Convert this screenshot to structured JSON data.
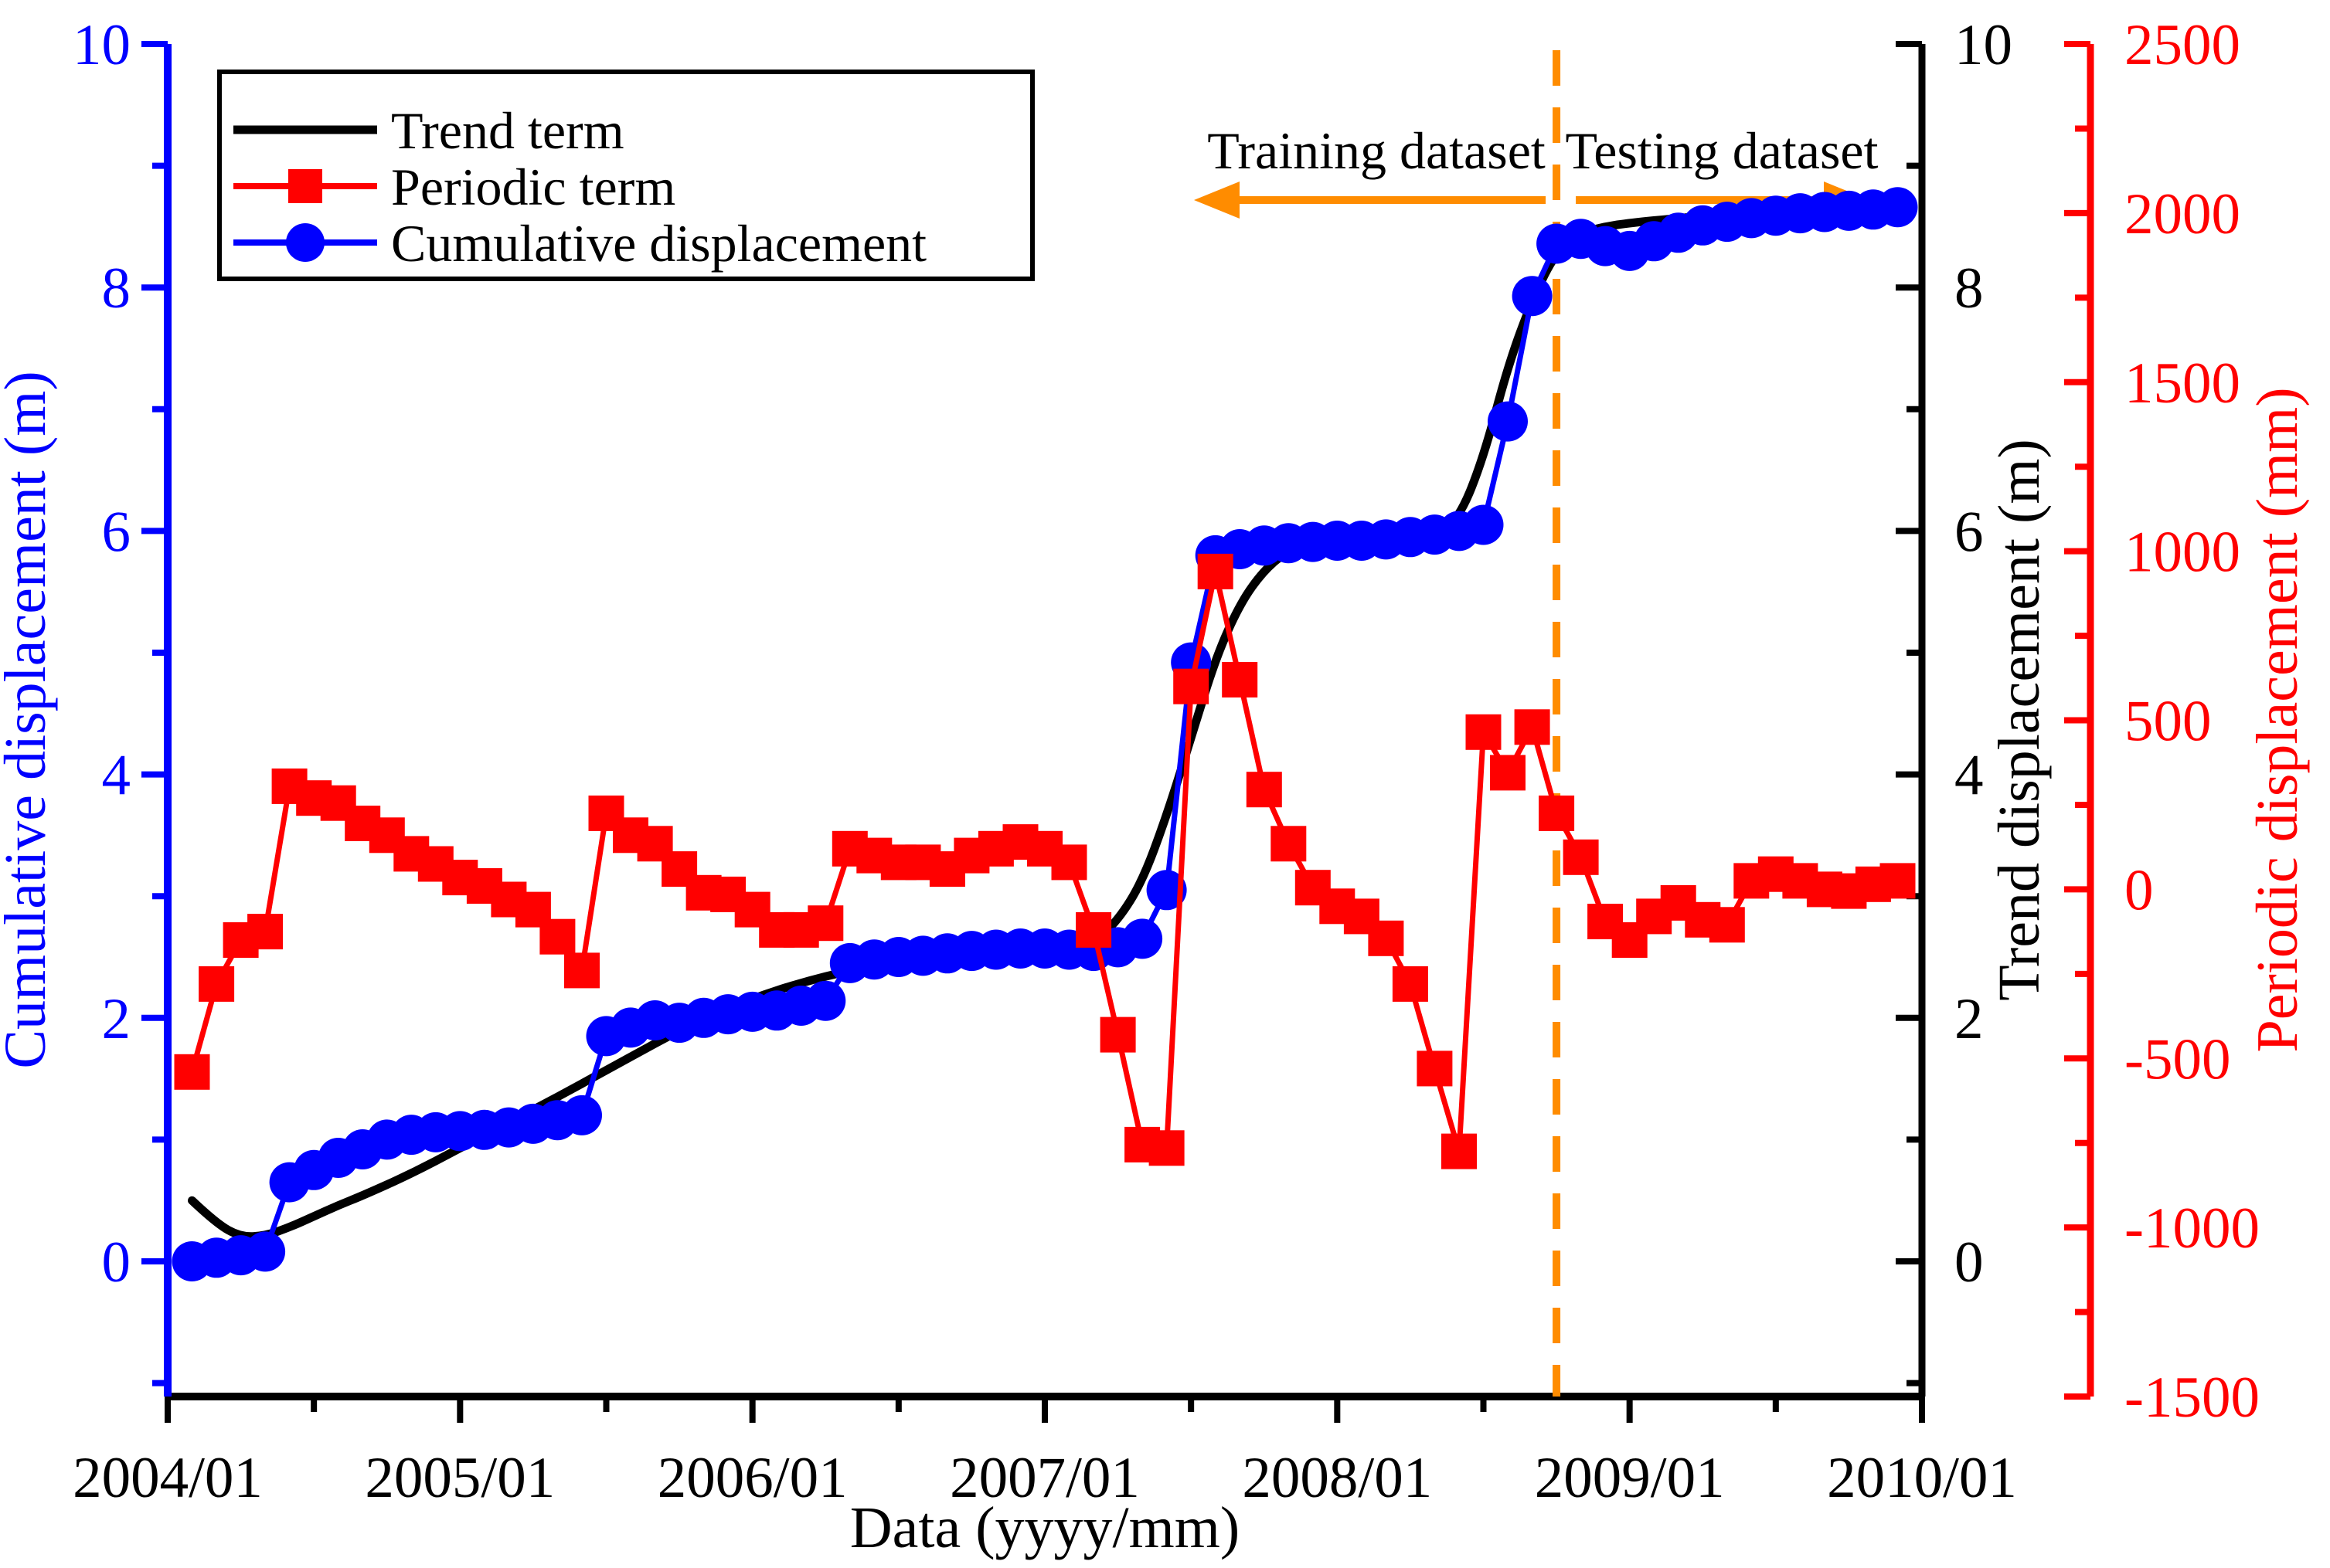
{
  "page": {
    "background": "#ffffff"
  },
  "legend": {
    "items": [
      {
        "label": "Trend term",
        "color": "#000000",
        "marker": "line"
      },
      {
        "label": "Periodic term",
        "color": "#FF0000",
        "marker": "filled-square"
      },
      {
        "label": "Cumulative displacement",
        "color": "#0000FF",
        "marker": "filled-circle"
      }
    ]
  },
  "annotations": {
    "training_label": "Training dataset",
    "testing_label": "Testing dataset",
    "split_month": "2008/10",
    "split_line_color": "#FF8C00",
    "arrow_color": "#FF8C00"
  },
  "chart_data": {
    "type": "line",
    "title": "",
    "xlabel": "Data (yyyy/mm)",
    "grid": false,
    "x_tick_labels": [
      "2004/01",
      "2005/01",
      "2006/01",
      "2007/01",
      "2008/01",
      "2009/01",
      "2010/01"
    ],
    "axes": {
      "cumulative": {
        "label": "Cumulative displacement (m)",
        "color": "#0000FF",
        "side": "left",
        "ticks": [
          "0",
          "2",
          "4",
          "6",
          "8",
          "10"
        ],
        "tick_values": [
          0,
          2,
          4,
          6,
          8,
          10
        ],
        "min": -1.11,
        "max": 10
      },
      "trend": {
        "label": "Trend displacement (m)",
        "color": "#000000",
        "side": "right",
        "ticks": [
          "0",
          "2",
          "4",
          "6",
          "8",
          "10"
        ],
        "tick_values": [
          0,
          2,
          4,
          6,
          8,
          10
        ],
        "min": -1.11,
        "max": 10
      },
      "periodic": {
        "label": "Periodic displacement (mm)",
        "color": "#FF0000",
        "side": "far-right",
        "ticks": [
          "2500",
          "2000",
          "1500",
          "1000",
          "500",
          "0",
          "-500",
          "-1000",
          "-1500"
        ],
        "tick_values": [
          2500,
          2000,
          1500,
          1000,
          500,
          0,
          -500,
          -1000,
          -1500
        ],
        "min": -1500,
        "max": 2500
      }
    },
    "months": [
      "2004/02",
      "2004/03",
      "2004/04",
      "2004/05",
      "2004/06",
      "2004/07",
      "2004/08",
      "2004/09",
      "2004/10",
      "2004/11",
      "2004/12",
      "2005/01",
      "2005/02",
      "2005/03",
      "2005/04",
      "2005/05",
      "2005/06",
      "2005/07",
      "2005/08",
      "2005/09",
      "2005/10",
      "2005/11",
      "2005/12",
      "2006/01",
      "2006/02",
      "2006/03",
      "2006/04",
      "2006/05",
      "2006/06",
      "2006/07",
      "2006/08",
      "2006/09",
      "2006/10",
      "2006/11",
      "2006/12",
      "2007/01",
      "2007/02",
      "2007/03",
      "2007/04",
      "2007/05",
      "2007/06",
      "2007/07",
      "2007/08",
      "2007/09",
      "2007/10",
      "2007/11",
      "2007/12",
      "2008/01",
      "2008/02",
      "2008/03",
      "2008/04",
      "2008/05",
      "2008/06",
      "2008/07",
      "2008/08",
      "2008/09",
      "2008/10",
      "2008/11",
      "2008/12",
      "2009/01",
      "2009/02",
      "2009/03",
      "2009/04",
      "2009/05",
      "2009/06",
      "2009/07",
      "2009/08",
      "2009/09",
      "2009/10",
      "2009/11",
      "2009/12"
    ],
    "series": [
      {
        "name": "Trend term",
        "axis": "trend",
        "color": "#000000",
        "style": "smooth-line",
        "points_month_value": [
          [
            1,
            0.5
          ],
          [
            2,
            0.31
          ],
          [
            3,
            0.2
          ],
          [
            4,
            0.21
          ],
          [
            5,
            0.28
          ],
          [
            6,
            0.37
          ],
          [
            7,
            0.46
          ],
          [
            8,
            0.54
          ],
          [
            10,
            0.72
          ],
          [
            12,
            0.93
          ],
          [
            14,
            1.14
          ],
          [
            16,
            1.35
          ],
          [
            18,
            1.57
          ],
          [
            20,
            1.79
          ],
          [
            22,
            2.0
          ],
          [
            24,
            2.16
          ],
          [
            26,
            2.29
          ],
          [
            28,
            2.39
          ],
          [
            30,
            2.46
          ],
          [
            32,
            2.5
          ],
          [
            34,
            2.52
          ],
          [
            36,
            2.5
          ],
          [
            37,
            2.52
          ],
          [
            38,
            2.62
          ],
          [
            39,
            2.8
          ],
          [
            40,
            3.12
          ],
          [
            41,
            3.66
          ],
          [
            42,
            4.3
          ],
          [
            43,
            4.95
          ],
          [
            44,
            5.4
          ],
          [
            45,
            5.68
          ],
          [
            46,
            5.84
          ],
          [
            47,
            5.92
          ],
          [
            48,
            5.95
          ],
          [
            49,
            5.96
          ],
          [
            50,
            5.95
          ],
          [
            51,
            5.94
          ],
          [
            52,
            5.96
          ],
          [
            53,
            6.1
          ],
          [
            54,
            6.6
          ],
          [
            55,
            7.35
          ],
          [
            56,
            7.9
          ],
          [
            57,
            8.3
          ],
          [
            58,
            8.45
          ],
          [
            59,
            8.5
          ],
          [
            60,
            8.53
          ],
          [
            62,
            8.57
          ],
          [
            64,
            8.6
          ],
          [
            66,
            8.62
          ],
          [
            68,
            8.64
          ],
          [
            70,
            8.65
          ],
          [
            71.5,
            8.66
          ]
        ]
      },
      {
        "name": "Periodic term",
        "axis": "periodic",
        "color": "#FF0000",
        "style": "line+filled-square",
        "values": [
          -540,
          -280,
          -150,
          -125,
          305,
          270,
          255,
          195,
          160,
          105,
          75,
          35,
          10,
          -30,
          -60,
          -140,
          -240,
          225,
          160,
          135,
          60,
          -10,
          -15,
          -60,
          -120,
          -120,
          -100,
          120,
          100,
          80,
          80,
          60,
          100,
          120,
          140,
          120,
          80,
          -120,
          -430,
          -755,
          -765,
          600,
          940,
          620,
          295,
          135,
          5,
          -50,
          -80,
          -145,
          -280,
          -530,
          -775,
          465,
          345,
          480,
          225,
          95,
          -95,
          -150,
          -80,
          -40,
          -90,
          -105,
          25,
          45,
          25,
          0,
          -5,
          15,
          25
        ]
      },
      {
        "name": "Cumulative displacement",
        "axis": "cumulative",
        "color": "#0000FF",
        "style": "line+filled-circle",
        "values": [
          0.0,
          0.03,
          0.05,
          0.08,
          0.65,
          0.75,
          0.85,
          0.92,
          1.0,
          1.04,
          1.06,
          1.07,
          1.08,
          1.1,
          1.13,
          1.16,
          1.2,
          1.85,
          1.92,
          1.98,
          1.96,
          2.0,
          2.03,
          2.05,
          2.06,
          2.1,
          2.14,
          2.45,
          2.48,
          2.5,
          2.51,
          2.53,
          2.55,
          2.56,
          2.57,
          2.57,
          2.56,
          2.55,
          2.58,
          2.65,
          3.05,
          4.92,
          5.8,
          5.85,
          5.88,
          5.9,
          5.91,
          5.92,
          5.92,
          5.93,
          5.95,
          5.97,
          6.0,
          6.05,
          6.9,
          7.93,
          8.36,
          8.4,
          8.34,
          8.3,
          8.38,
          8.45,
          8.51,
          8.54,
          8.57,
          8.59,
          8.61,
          8.62,
          8.63,
          8.64,
          8.66
        ]
      }
    ]
  }
}
